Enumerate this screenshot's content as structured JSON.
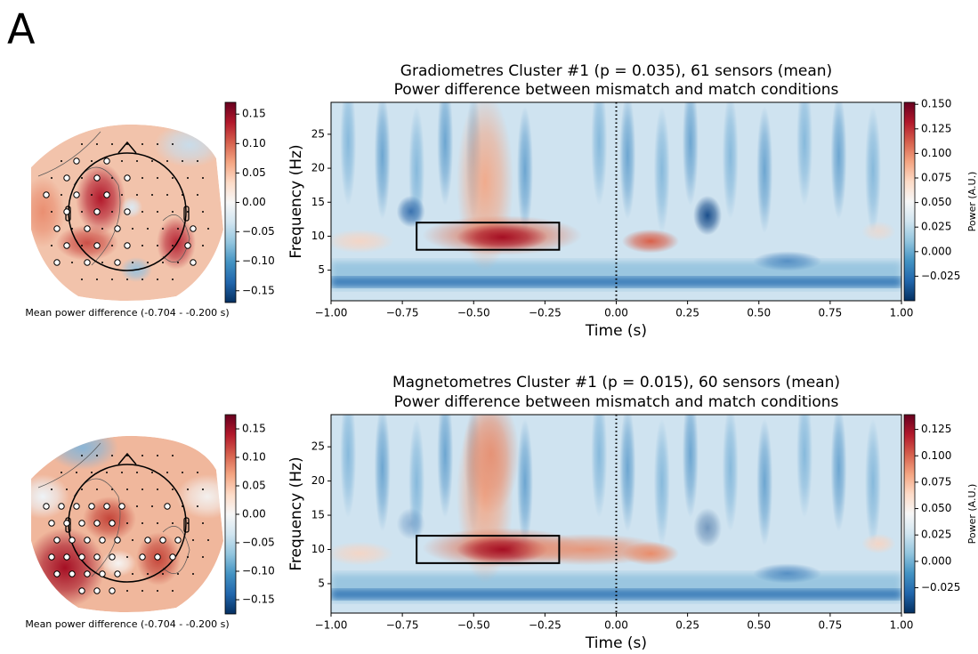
{
  "panel_label": "A",
  "chart_data": [
    {
      "type": "topomap",
      "xlabel": "Mean power difference (-0.704 - -0.200 s)",
      "clim": [
        -0.17,
        0.17
      ],
      "cticks": [
        {
          "value": -0.15,
          "label": "−0.15"
        },
        {
          "value": -0.1,
          "label": "−0.10"
        },
        {
          "value": -0.05,
          "label": "−0.05"
        },
        {
          "value": 0,
          "label": "0.00"
        },
        0.05,
        {
          "value": 0.1,
          "label": "0.10"
        },
        0.15
      ]
    },
    {
      "type": "heatmap",
      "title": "Gradiometres Cluster #1 (p = 0.035), 61 sensors (mean)",
      "subtitle": "Power difference between mismatch and match conditions",
      "xlabel": "Time (s)",
      "ylabel": "Frequency (Hz)",
      "clabel": "Power (A.U.)",
      "xlim": [
        -1,
        1
      ],
      "xticks": [
        {
          "value": -1,
          "label": "−1.00"
        },
        {
          "value": -0.75,
          "label": "−0.75"
        },
        {
          "value": -0.5,
          "label": "−0.50"
        },
        {
          "value": -0.25,
          "label": "−0.25"
        },
        {
          "value": 0,
          "label": "0.00"
        },
        0.25,
        {
          "value": 0.5,
          "label": "0.50"
        },
        0.75,
        {
          "value": 1,
          "label": "1.00"
        }
      ],
      "ylim": [
        0.5,
        29.7
      ],
      "yticks": [
        5,
        10,
        15,
        20,
        25
      ],
      "vline": 0,
      "highlight": {
        "x": [
          -0.7,
          -0.2
        ],
        "y": [
          8,
          12
        ]
      },
      "clim": [
        -0.05,
        0.152
      ],
      "cticks": [
        {
          "value": -0.025,
          "label": "−0.025"
        },
        {
          "value": 0,
          "label": "0.000"
        },
        0.025,
        {
          "value": 0.05,
          "label": "0.050"
        },
        0.075,
        {
          "value": 0.1,
          "label": "0.100"
        },
        0.125,
        {
          "value": 0.15,
          "label": "0.150"
        }
      ]
    },
    {
      "type": "topomap",
      "xlabel": "Mean power difference (-0.704 - -0.200 s)",
      "clim": [
        -0.175,
        0.175
      ],
      "cticks": [
        {
          "value": -0.15,
          "label": "−0.15"
        },
        {
          "value": -0.1,
          "label": "−0.10"
        },
        {
          "value": -0.05,
          "label": "−0.05"
        },
        {
          "value": 0,
          "label": "0.00"
        },
        0.05,
        {
          "value": 0.1,
          "label": "0.10"
        },
        0.15
      ]
    },
    {
      "type": "heatmap",
      "title": "Magnetometres Cluster #1 (p = 0.015), 60 sensors (mean)",
      "subtitle": "Power difference between mismatch and match conditions",
      "xlabel": "Time (s)",
      "ylabel": "Frequency (Hz)",
      "clabel": "Power (A.U.)",
      "xlim": [
        -1,
        1
      ],
      "xticks": [
        {
          "value": -1,
          "label": "−1.00"
        },
        {
          "value": -0.75,
          "label": "−0.75"
        },
        {
          "value": -0.5,
          "label": "−0.50"
        },
        {
          "value": -0.25,
          "label": "−0.25"
        },
        {
          "value": 0,
          "label": "0.00"
        },
        0.25,
        {
          "value": 0.5,
          "label": "0.50"
        },
        0.75,
        {
          "value": 1,
          "label": "1.00"
        }
      ],
      "ylim": [
        0.7,
        29.7
      ],
      "yticks": [
        5,
        10,
        15,
        20,
        25
      ],
      "vline": 0,
      "highlight": {
        "x": [
          -0.7,
          -0.2
        ],
        "y": [
          8,
          12
        ]
      },
      "clim": [
        -0.049,
        0.139
      ],
      "cticks": [
        {
          "value": -0.025,
          "label": "−0.025"
        },
        {
          "value": 0,
          "label": "0.000"
        },
        0.025,
        {
          "value": 0.05,
          "label": "0.050"
        },
        0.075,
        {
          "value": 0.1,
          "label": "0.100"
        },
        0.125
      ]
    }
  ]
}
